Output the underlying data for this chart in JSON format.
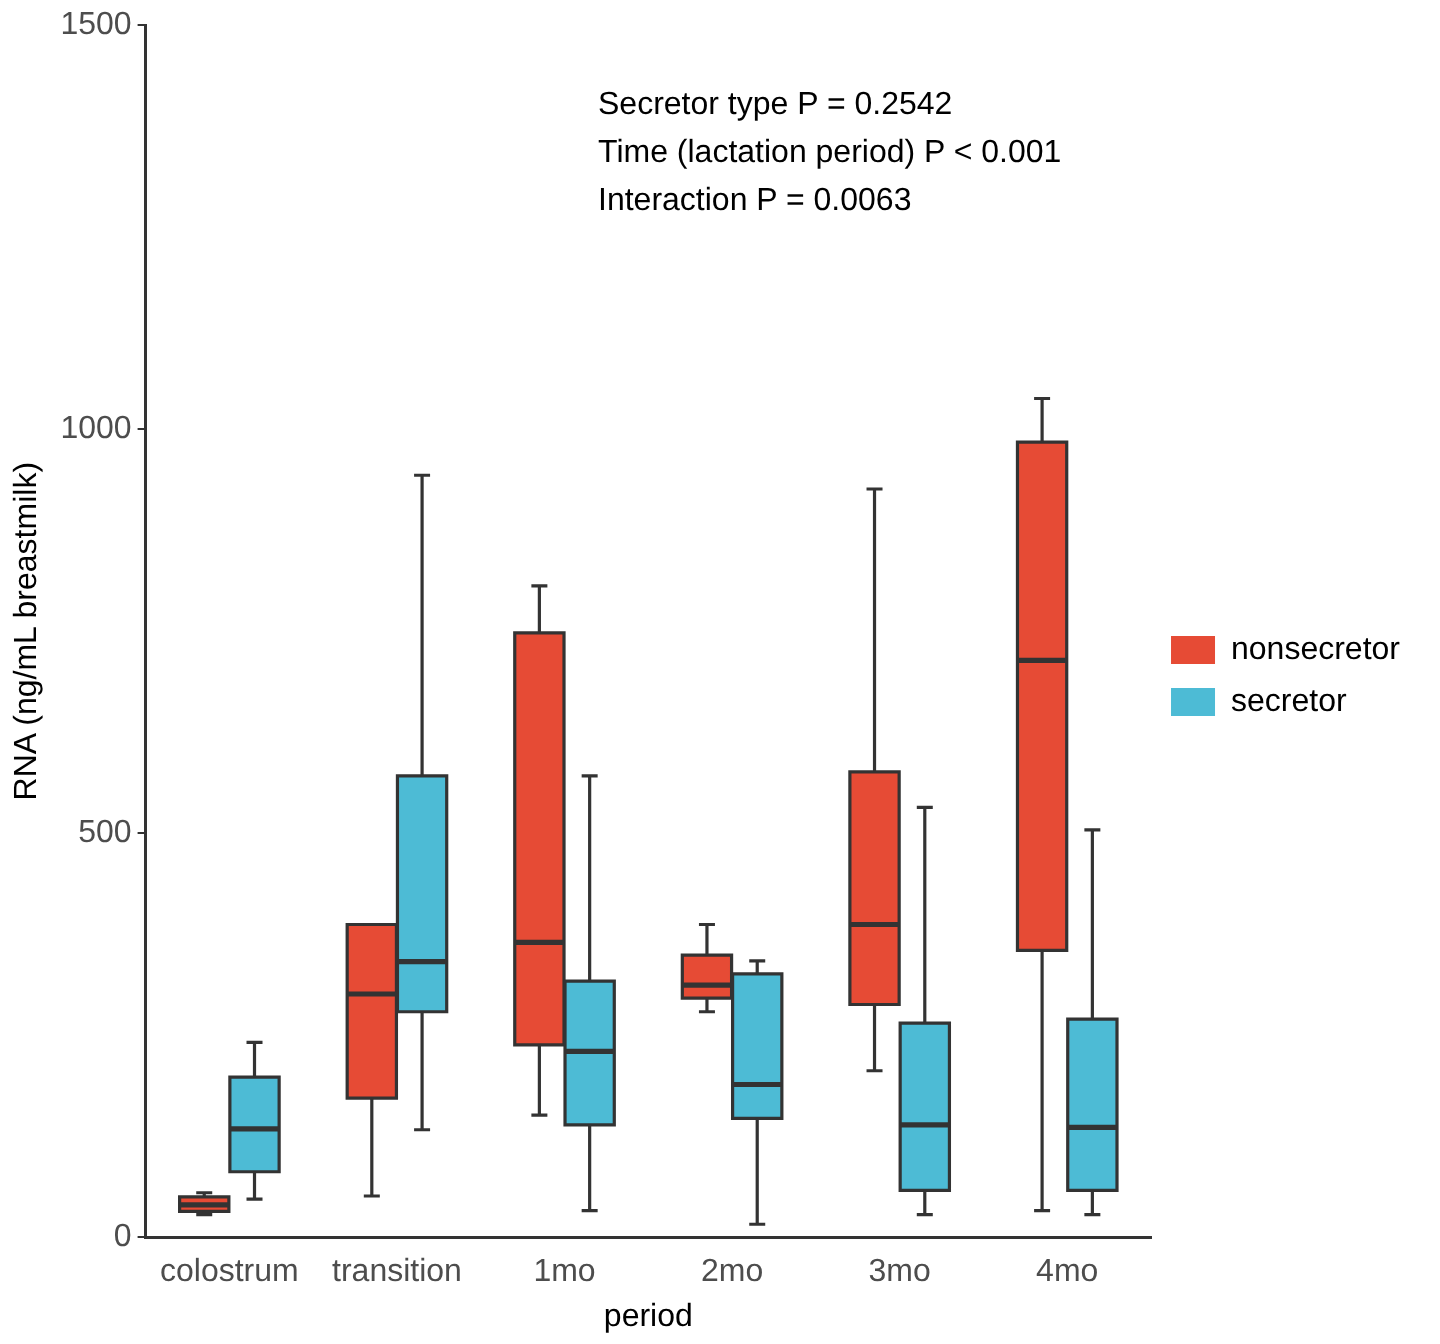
{
  "chart_data": {
    "type": "box",
    "xlabel": "period",
    "ylabel": "RNA (ng/mL breastmilk)",
    "categories": [
      "colostrum",
      "transition",
      "1mo",
      "2mo",
      "3mo",
      "4mo"
    ],
    "series": [
      {
        "name": "nonsecretor",
        "color": "#e64b35",
        "boxes": [
          {
            "low": 28,
            "q1": 32,
            "median": 40,
            "q3": 50,
            "high": 55
          },
          {
            "low": 51,
            "q1": 172,
            "median": 301,
            "q3": 387,
            "high": 387
          },
          {
            "low": 151,
            "q1": 238,
            "median": 365,
            "q3": 748,
            "high": 806
          },
          {
            "low": 279,
            "q1": 296,
            "median": 312,
            "q3": 349,
            "high": 387
          },
          {
            "low": 206,
            "q1": 288,
            "median": 387,
            "q3": 576,
            "high": 926
          },
          {
            "low": 33,
            "q1": 355,
            "median": 714,
            "q3": 984,
            "high": 1038
          }
        ]
      },
      {
        "name": "secretor",
        "color": "#4dbbd5",
        "boxes": [
          {
            "low": 47,
            "q1": 81,
            "median": 134,
            "q3": 198,
            "high": 241
          },
          {
            "low": 133,
            "q1": 279,
            "median": 341,
            "q3": 571,
            "high": 943
          },
          {
            "low": 33,
            "q1": 139,
            "median": 230,
            "q3": 317,
            "high": 571
          },
          {
            "low": 16,
            "q1": 147,
            "median": 189,
            "q3": 326,
            "high": 342
          },
          {
            "low": 28,
            "q1": 58,
            "median": 139,
            "q3": 265,
            "high": 532
          },
          {
            "low": 28,
            "q1": 58,
            "median": 136,
            "q3": 270,
            "high": 504
          }
        ]
      }
    ],
    "ylim": [
      0,
      1500
    ],
    "yticks": [
      0,
      500,
      1000,
      1500
    ],
    "grid": false,
    "legend": "right",
    "annotations": [
      "Secretor type P = 0.2542",
      "Time (lactation period) P < 0.001",
      "Interaction P = 0.0063"
    ]
  }
}
